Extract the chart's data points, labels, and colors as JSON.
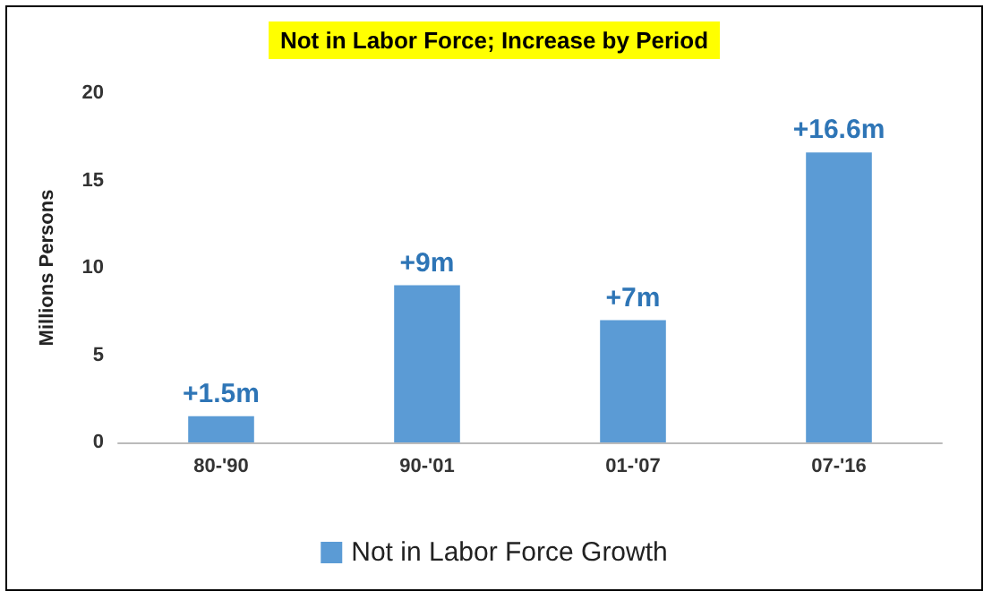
{
  "chart_data": {
    "type": "bar",
    "title": "Not in Labor Force; Increase by Period",
    "ylabel": "Millions Persons",
    "categories": [
      "80-'90",
      "90-'01",
      "01-'07",
      "07-'16"
    ],
    "series": [
      {
        "name": "Not in Labor Force Growth",
        "color": "#5b9bd5",
        "values": [
          1.5,
          9,
          7,
          16.6
        ],
        "value_labels": [
          "+1.5m",
          "+9m",
          "+7m",
          "+16.6m"
        ]
      }
    ],
    "ylim": [
      0,
      20
    ],
    "yticks": [
      0,
      5,
      10,
      15,
      20
    ],
    "grid": false,
    "legend": "bottom"
  }
}
